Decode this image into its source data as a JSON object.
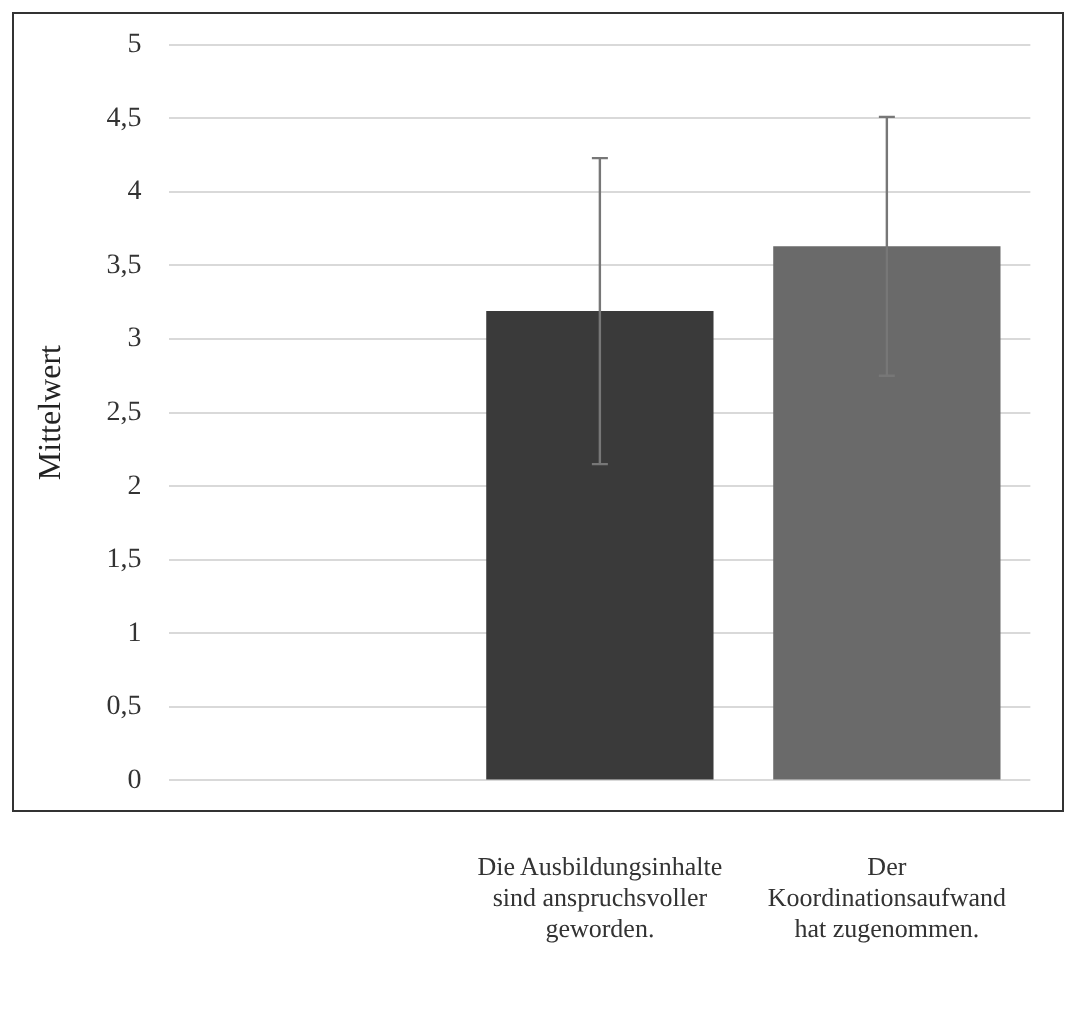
{
  "chart_data": {
    "type": "bar",
    "ylabel": "Mittelwert",
    "categories": [
      null,
      "Die Ausbildungsinhalte sind anspruchsvoller geworden.",
      "Der Koordinationsaufwand hat zugenommen."
    ],
    "values": [
      null,
      3.19,
      3.63
    ],
    "errors": [
      null,
      1.04,
      0.88
    ],
    "colors": [
      "#555555",
      "#3a3a3a",
      "#6a6a6a"
    ],
    "ylim": [
      0,
      5
    ],
    "yticks": [
      0,
      {
        "value": 0.5,
        "label": "0,5"
      },
      1,
      {
        "value": 1.5,
        "label": "1,5"
      },
      2,
      {
        "value": 2.5,
        "label": "2,5"
      },
      3,
      {
        "value": 3.5,
        "label": "3,5"
      },
      4,
      {
        "value": 4.5,
        "label": "4,5"
      },
      5
    ],
    "grid": "y",
    "legend": false
  }
}
